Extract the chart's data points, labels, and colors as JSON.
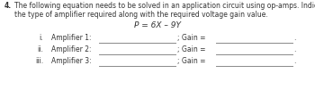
{
  "background_color": "#ffffff",
  "question_number": "4.",
  "line1": "The following equation needs to be solved in an application circuit using op-amps. Indicate",
  "line2": "the type of amplifier required along with the required voltage gain value.",
  "equation": "P = 6X – 9Y",
  "items": [
    {
      "roman": "i.",
      "label": "Amplifier 1:"
    },
    {
      "roman": "ii.",
      "label": "Amplifier 2:"
    },
    {
      "roman": "iii.",
      "label": "Amplifier 3:"
    }
  ],
  "gain_label": "Gain =",
  "line_color": "#888888",
  "text_color": "#333333",
  "font_size_body": 5.5,
  "font_size_equation": 6.5
}
